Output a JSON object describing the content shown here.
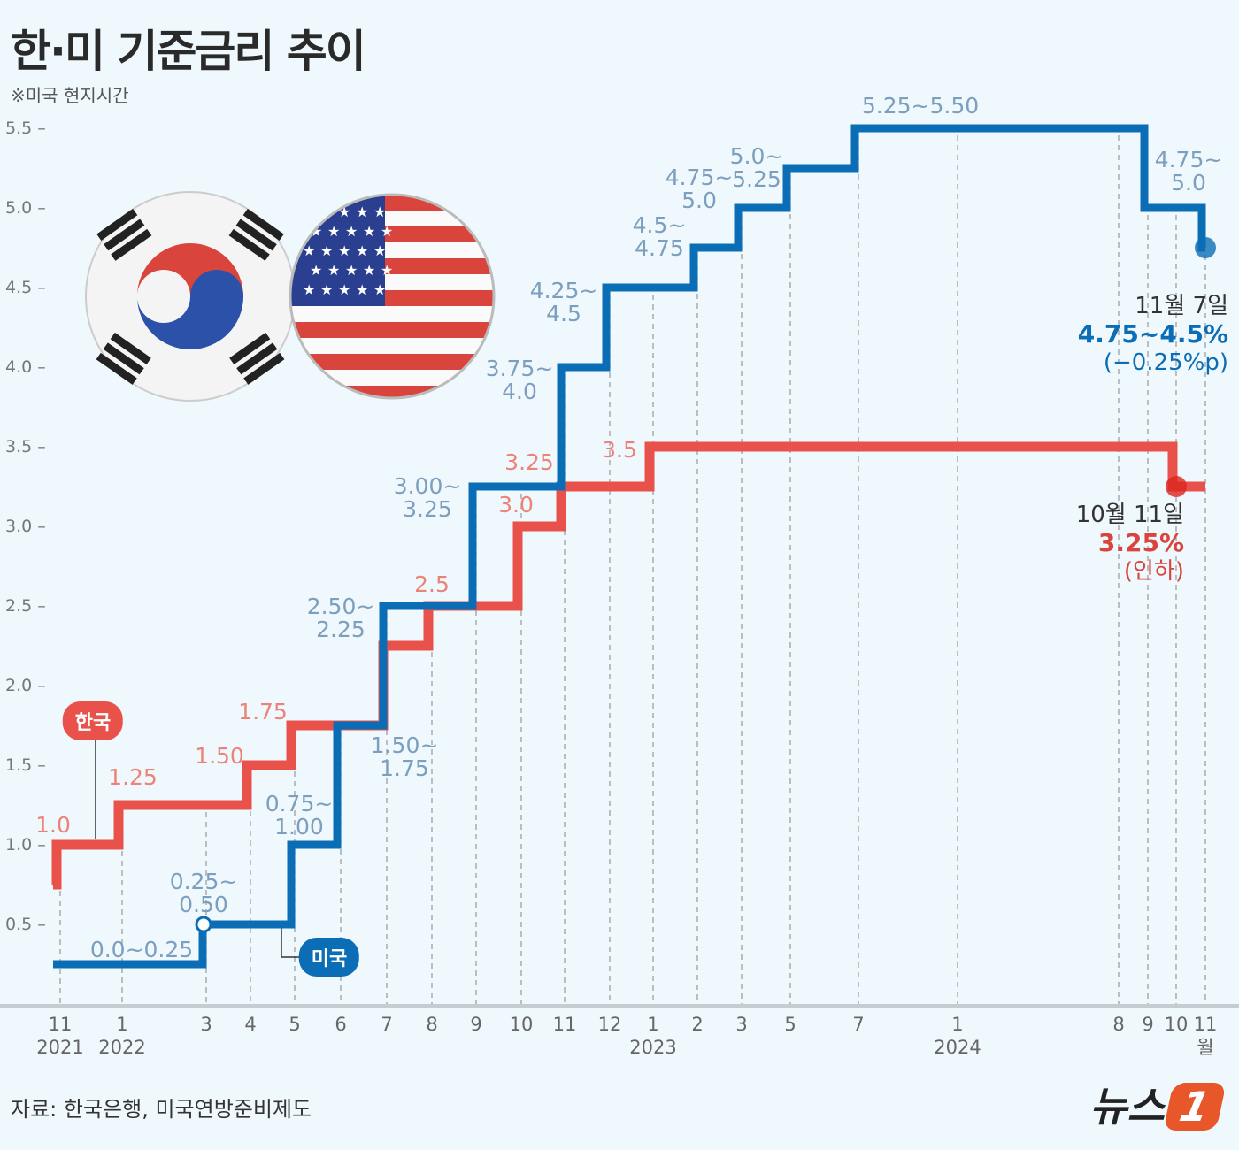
{
  "title": "한·미 기준금리 추이",
  "subtitle": "※미국 현지시간",
  "source": "자료: 한국은행, 미국연방준비제도",
  "logo": "뉴스1",
  "chart_data": {
    "type": "line",
    "step": true,
    "ylim": [
      0,
      5.5
    ],
    "yticks": [
      "5.5",
      "5.0",
      "4.5",
      "4.0",
      "3.5",
      "3.0",
      "2.5",
      "2.0",
      "1.5",
      "1.0",
      "0.5"
    ],
    "categories": [
      {
        "month": "11",
        "year": "2021"
      },
      {
        "month": "1",
        "year": "2022"
      },
      {
        "month": "3",
        "year": ""
      },
      {
        "month": "4",
        "year": ""
      },
      {
        "month": "5",
        "year": ""
      },
      {
        "month": "6",
        "year": ""
      },
      {
        "month": "7",
        "year": ""
      },
      {
        "month": "8",
        "year": ""
      },
      {
        "month": "9",
        "year": ""
      },
      {
        "month": "10",
        "year": ""
      },
      {
        "month": "11",
        "year": ""
      },
      {
        "month": "12",
        "year": ""
      },
      {
        "month": "1",
        "year": "2023"
      },
      {
        "month": "2",
        "year": ""
      },
      {
        "month": "3",
        "year": ""
      },
      {
        "month": "5",
        "year": ""
      },
      {
        "month": "7",
        "year": ""
      },
      {
        "month": "1",
        "year": "2024"
      },
      {
        "month": "8",
        "year": ""
      },
      {
        "month": "9",
        "year": ""
      },
      {
        "month": "10",
        "year": ""
      },
      {
        "month": "11월",
        "year": ""
      }
    ],
    "series": [
      {
        "name": "한국",
        "color": "#e8524a",
        "start": 0.75,
        "steps": [
          {
            "cat": 0,
            "value": 1.0,
            "label": "1.0"
          },
          {
            "cat": 1,
            "value": 1.25,
            "label": "1.25"
          },
          {
            "cat": 3,
            "value": 1.5,
            "label": "1.50"
          },
          {
            "cat": 4,
            "value": 1.75,
            "label": "1.75"
          },
          {
            "cat": 6,
            "value": 2.25,
            "label": ""
          },
          {
            "cat": 7,
            "value": 2.5,
            "label": "2.5"
          },
          {
            "cat": 9,
            "value": 3.0,
            "label": "3.0"
          },
          {
            "cat": 10,
            "value": 3.25,
            "label": "3.25"
          },
          {
            "cat": 12,
            "value": 3.5,
            "label": "3.5"
          },
          {
            "cat": 20,
            "value": 3.25,
            "label": ""
          }
        ]
      },
      {
        "name": "미국",
        "color": "#0b6db5",
        "start": 0.25,
        "start_label": "0.0~0.25",
        "steps": [
          {
            "cat": 2,
            "value": 0.5,
            "label": "0.25~\n0.50"
          },
          {
            "cat": 4,
            "value": 1.0,
            "label": "0.75~\n1.00"
          },
          {
            "cat": 5,
            "value": 1.75,
            "label": "1.50~\n1.75"
          },
          {
            "cat": 6,
            "value": 2.5,
            "label": "2.50~\n2.25"
          },
          {
            "cat": 8,
            "value": 3.25,
            "label": "3.00~\n3.25"
          },
          {
            "cat": 10,
            "value": 4.0,
            "label": "3.75~\n4.0"
          },
          {
            "cat": 11,
            "value": 4.5,
            "label": "4.25~\n4.5"
          },
          {
            "cat": 13,
            "value": 4.75,
            "label": "4.5~\n4.75"
          },
          {
            "cat": 14,
            "value": 5.0,
            "label": "4.75~\n5.0"
          },
          {
            "cat": 15,
            "value": 5.25,
            "label": "5.0~\n5.25"
          },
          {
            "cat": 16,
            "value": 5.5,
            "label": "5.25~5.50"
          },
          {
            "cat": 19,
            "value": 5.0,
            "label": "4.75~\n5.0"
          },
          {
            "cat": 21,
            "value": 4.75,
            "label": ""
          }
        ]
      }
    ],
    "annotations": {
      "us": {
        "date": "11월 7일",
        "value": "4.75~4.5%",
        "change": "(−0.25%p)",
        "color": "#0b6db5"
      },
      "kr": {
        "date": "10월 11일",
        "value": "3.25%",
        "change": "(인하)",
        "color": "#d9453d"
      }
    }
  }
}
